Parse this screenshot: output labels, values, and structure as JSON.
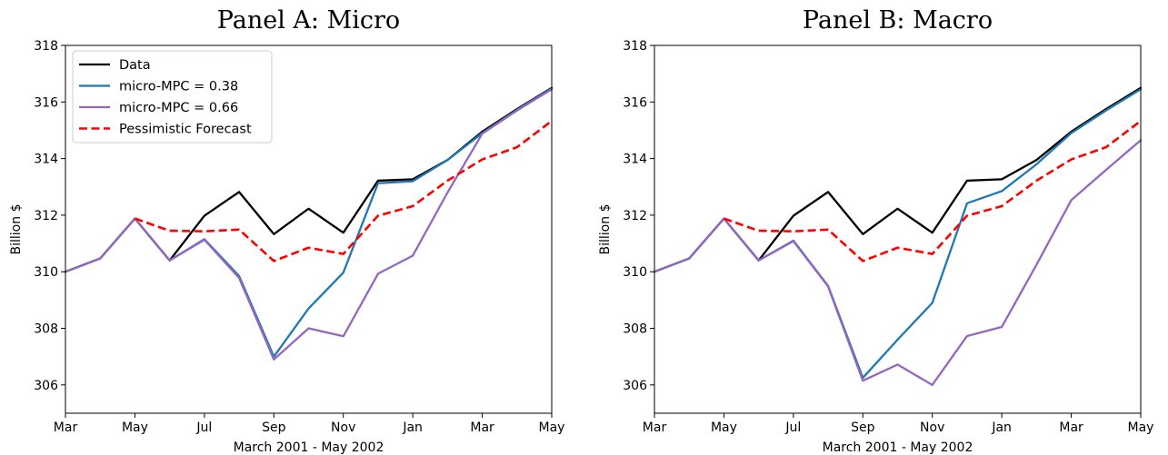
{
  "chart_data": [
    {
      "type": "line",
      "title": "Panel A: Micro",
      "xlabel": "March 2001 - May 2002",
      "ylabel": "Billion $",
      "ylim": [
        305,
        318
      ],
      "yticks": [
        306,
        308,
        310,
        312,
        314,
        316,
        318
      ],
      "x": [
        "Mar 2001",
        "Apr 2001",
        "May 2001",
        "Jun 2001",
        "Jul 2001",
        "Aug 2001",
        "Sep 2001",
        "Oct 2001",
        "Nov 2001",
        "Dec 2001",
        "Jan 2002",
        "Feb 2002",
        "Mar 2002",
        "Apr 2002",
        "May 2002"
      ],
      "xtick_labels": [
        "Mar",
        "May",
        "Jul",
        "Sep",
        "Nov",
        "Jan",
        "Mar",
        "May"
      ],
      "grid": false,
      "legend": "upper-left",
      "series": [
        {
          "name": "Data",
          "color": "#000000",
          "style": "solid",
          "values": [
            310.0,
            310.47,
            311.88,
            310.4,
            311.98,
            312.82,
            311.33,
            312.23,
            311.38,
            313.22,
            313.27,
            313.95,
            314.95,
            315.75,
            316.5
          ]
        },
        {
          "name": "micro-MPC = 0.38",
          "color": "#1f77b4",
          "style": "solid",
          "values": [
            310.0,
            310.47,
            311.88,
            310.4,
            311.15,
            309.85,
            307.0,
            308.7,
            309.97,
            313.13,
            313.2,
            313.95,
            314.9,
            315.72,
            316.48
          ]
        },
        {
          "name": "micro-MPC = 0.66",
          "color": "#9467bd",
          "style": "solid",
          "values": [
            310.0,
            310.47,
            311.88,
            310.4,
            311.13,
            309.78,
            306.9,
            308.0,
            307.72,
            309.93,
            310.57,
            312.8,
            314.88,
            315.7,
            316.45
          ]
        },
        {
          "name": "Pessimistic Forecast",
          "color": "#ff0000",
          "style": "dashed",
          "values": [
            null,
            null,
            311.88,
            311.45,
            311.43,
            311.49,
            310.38,
            310.85,
            310.63,
            311.98,
            312.32,
            313.22,
            313.97,
            314.4,
            315.33
          ]
        }
      ]
    },
    {
      "type": "line",
      "title": "Panel B: Macro",
      "xlabel": "March 2001 - May 2002",
      "ylabel": "Billion $",
      "ylim": [
        305,
        318
      ],
      "yticks": [
        306,
        308,
        310,
        312,
        314,
        316,
        318
      ],
      "x": [
        "Mar 2001",
        "Apr 2001",
        "May 2001",
        "Jun 2001",
        "Jul 2001",
        "Aug 2001",
        "Sep 2001",
        "Oct 2001",
        "Nov 2001",
        "Dec 2001",
        "Jan 2002",
        "Feb 2002",
        "Mar 2002",
        "Apr 2002",
        "May 2002"
      ],
      "xtick_labels": [
        "Mar",
        "May",
        "Jul",
        "Sep",
        "Nov",
        "Jan",
        "Mar",
        "May"
      ],
      "grid": false,
      "series": [
        {
          "name": "Data",
          "color": "#000000",
          "style": "solid",
          "values": [
            310.0,
            310.47,
            311.88,
            310.4,
            311.98,
            312.82,
            311.33,
            312.23,
            311.38,
            313.22,
            313.27,
            313.95,
            314.95,
            315.75,
            316.5
          ]
        },
        {
          "name": "micro-MPC = 0.38",
          "color": "#1f77b4",
          "style": "solid",
          "values": [
            310.0,
            310.47,
            311.88,
            310.4,
            311.1,
            309.5,
            306.25,
            307.6,
            308.9,
            312.42,
            312.85,
            313.8,
            314.9,
            315.7,
            316.45
          ]
        },
        {
          "name": "micro-MPC = 0.66",
          "color": "#9467bd",
          "style": "solid",
          "values": [
            310.0,
            310.47,
            311.88,
            310.4,
            311.08,
            309.48,
            306.15,
            306.72,
            306.0,
            307.73,
            308.05,
            310.25,
            312.53,
            313.6,
            314.65
          ]
        },
        {
          "name": "Pessimistic Forecast",
          "color": "#ff0000",
          "style": "dashed",
          "values": [
            null,
            null,
            311.88,
            311.45,
            311.43,
            311.49,
            310.38,
            310.85,
            310.63,
            311.98,
            312.32,
            313.22,
            313.97,
            314.4,
            315.33
          ]
        }
      ]
    }
  ]
}
